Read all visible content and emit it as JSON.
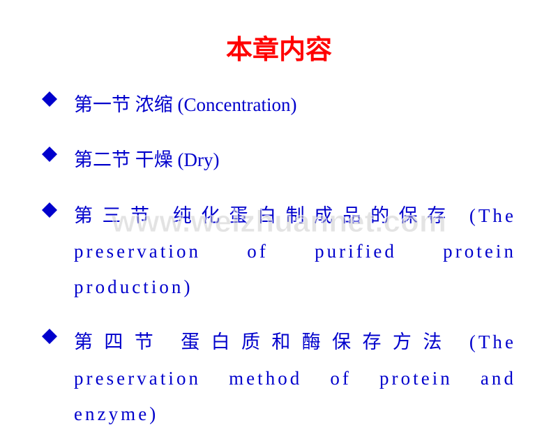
{
  "title": {
    "text": "本章内容",
    "color": "#ff0000",
    "fontsize": 38
  },
  "bullet": {
    "color": "#0000cc",
    "size": 22
  },
  "item_text": {
    "color": "#0000cc",
    "fontsize": 27
  },
  "items": [
    {
      "text": "第一节 浓缩 (Concentration)",
      "justified": false
    },
    {
      "text": "第二节 干燥 (Dry)",
      "justified": false
    },
    {
      "text": "第三节 纯化蛋白制成品的保存 (The preservation of purified protein production)",
      "justified": true
    },
    {
      "text": "第四节 蛋白质和酶保存方法 (The preservation method of protein and enzyme)",
      "justified": true
    }
  ],
  "watermark": {
    "text": "www.weizhuannet.com",
    "fontsize": 44,
    "top_pct": 53
  }
}
